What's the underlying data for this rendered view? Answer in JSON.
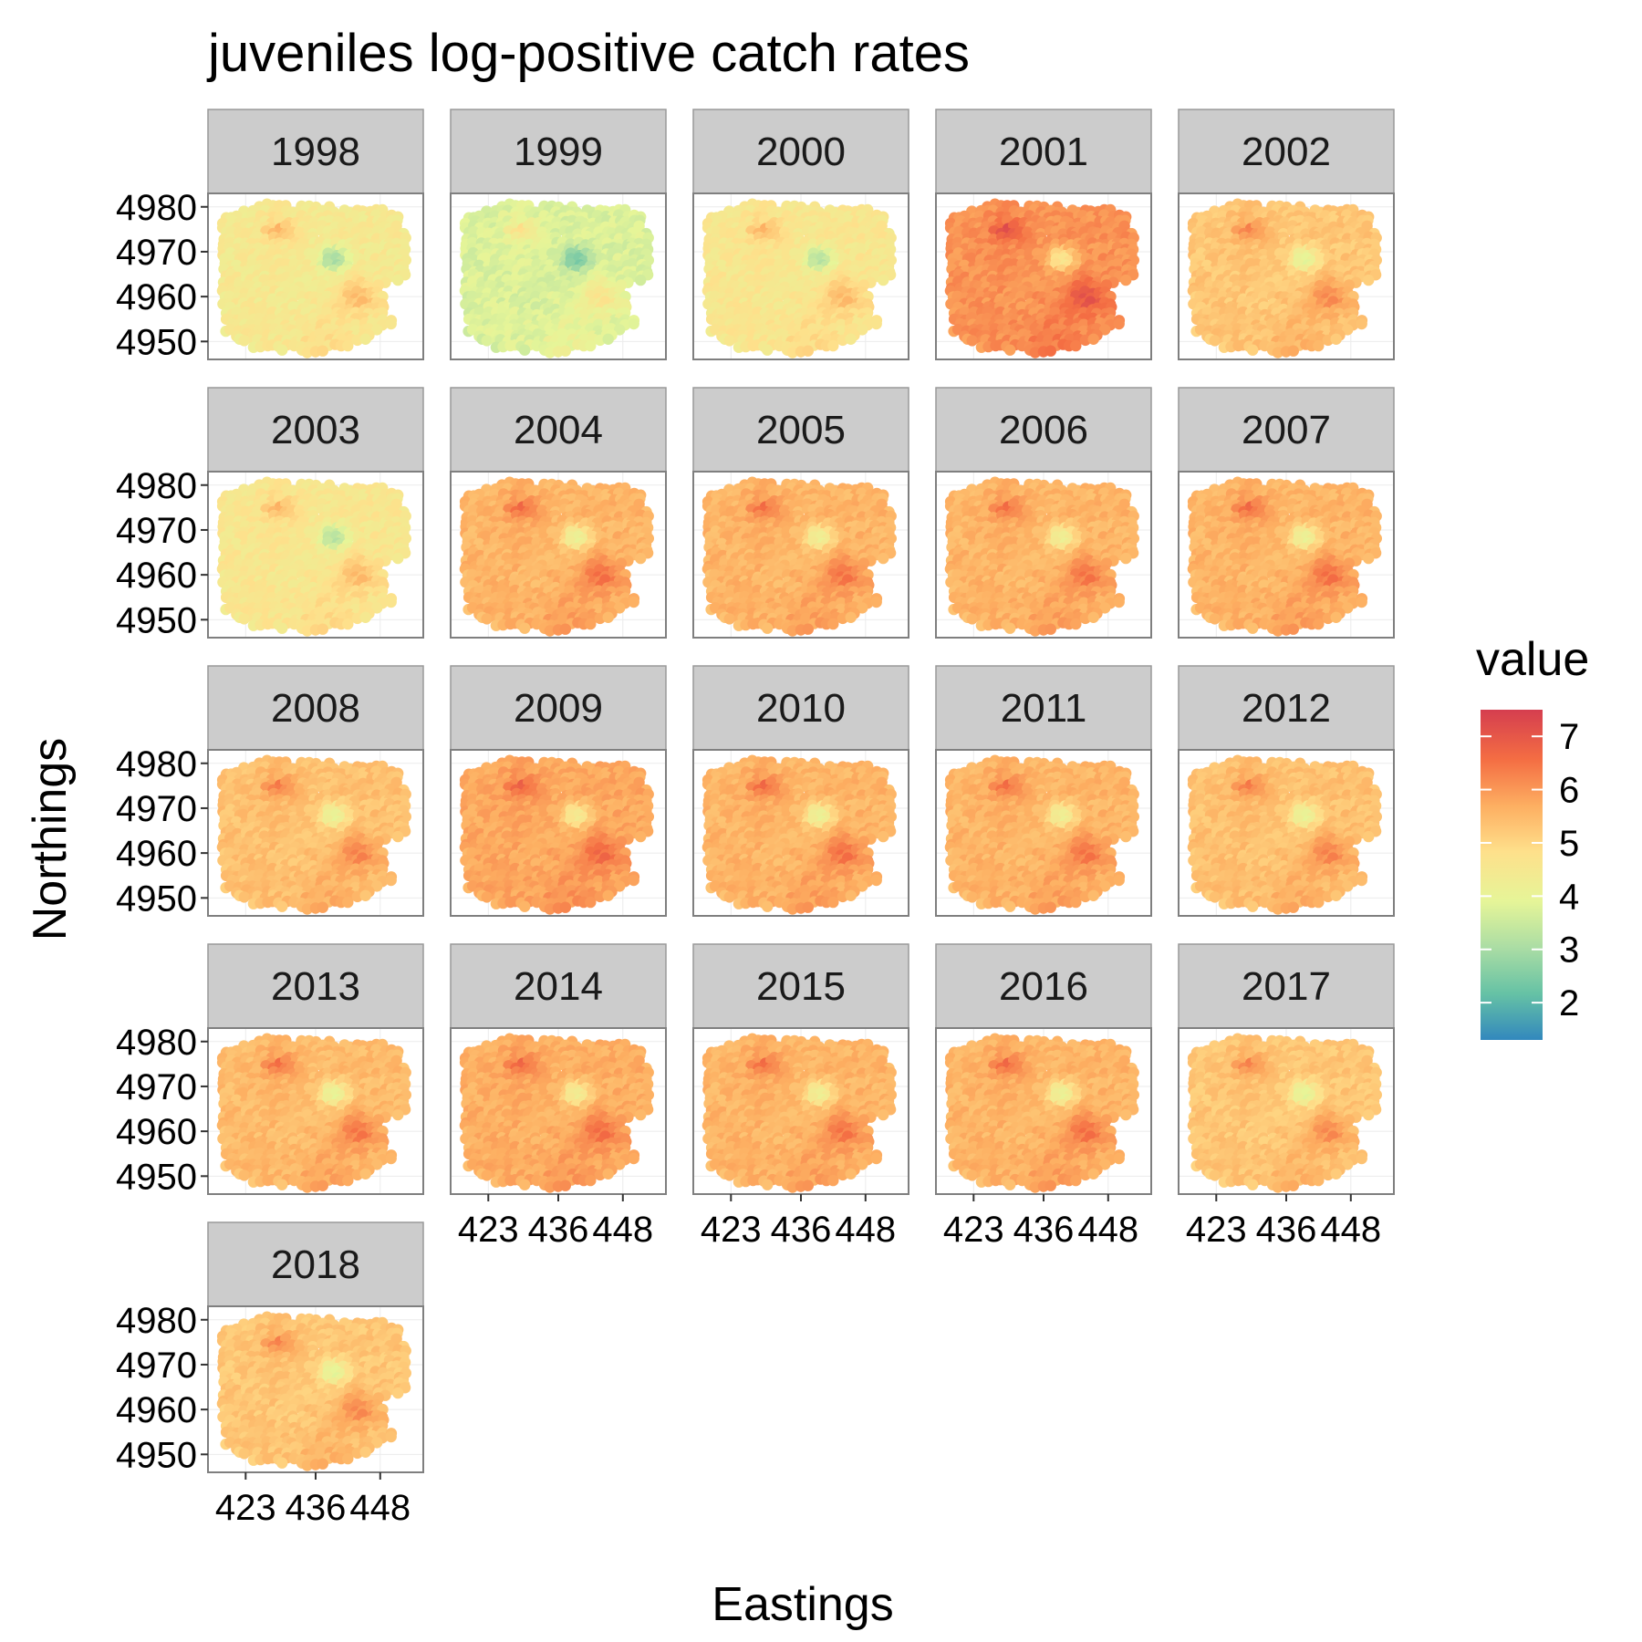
{
  "chart_data": {
    "type": "heatmap",
    "title": "juveniles log-positive catch rates",
    "xlabel": "Eastings",
    "ylabel": "Northings",
    "facets": [
      "1998",
      "1999",
      "2000",
      "2001",
      "2002",
      "2003",
      "2004",
      "2005",
      "2006",
      "2007",
      "2008",
      "2009",
      "2010",
      "2011",
      "2012",
      "2013",
      "2014",
      "2015",
      "2016",
      "2017",
      "2018"
    ],
    "facet_mean_value": [
      4.5,
      3.8,
      4.6,
      6.1,
      5.3,
      4.6,
      5.6,
      5.6,
      5.6,
      5.6,
      5.4,
      5.8,
      5.6,
      5.6,
      5.4,
      5.5,
      5.7,
      5.6,
      5.6,
      5.3,
      5.3
    ],
    "x_ticks": [
      "423",
      "436",
      "448"
    ],
    "x_tick_values": [
      423,
      436,
      448
    ],
    "y_ticks": [
      "4980",
      "4970",
      "4960",
      "4950"
    ],
    "y_tick_values": [
      4980,
      4970,
      4960,
      4950
    ],
    "xlim": [
      416,
      456
    ],
    "ylim": [
      4946,
      4983
    ],
    "legend": {
      "title": "value",
      "placement": "right",
      "ticks": [
        "7",
        "6",
        "5",
        "4",
        "3",
        "2"
      ],
      "tick_values": [
        7,
        6,
        5,
        4,
        3,
        2
      ],
      "range": [
        1.3,
        7.5
      ]
    },
    "palette": [
      "#d53e4f",
      "#f46d43",
      "#fdae61",
      "#fee08b",
      "#e6f598",
      "#abdda4",
      "#66c2a5",
      "#3288bd"
    ]
  }
}
